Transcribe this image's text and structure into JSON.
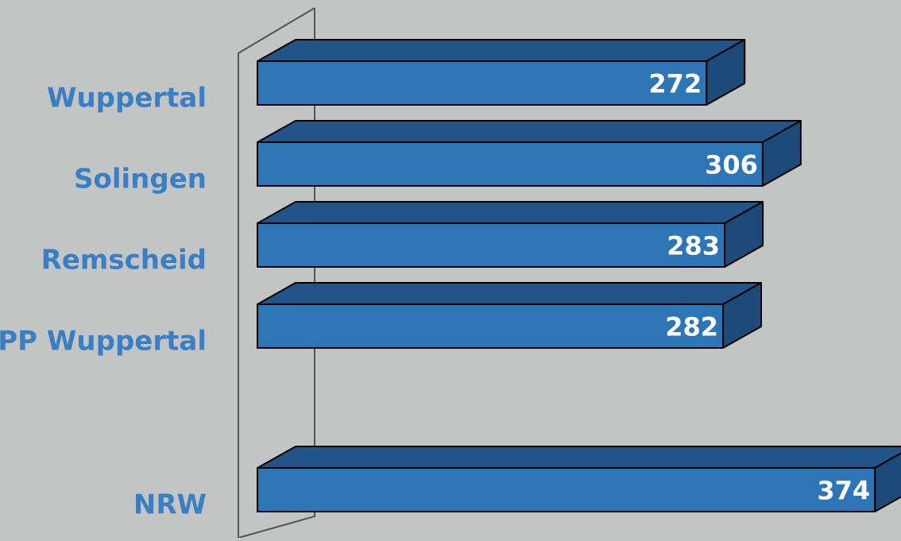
{
  "chart_data": {
    "type": "bar",
    "orientation": "horizontal",
    "style": "3d",
    "categories": [
      "Wuppertal",
      "Solingen",
      "Remscheid",
      "PP Wuppertal",
      "NRW"
    ],
    "values": [
      272,
      306,
      283,
      282,
      374
    ],
    "series": [
      {
        "values": [
          272,
          306,
          283,
          282,
          374
        ]
      }
    ],
    "title": "",
    "xlabel": "",
    "ylabel": "",
    "data_labels": [
      "272",
      "306",
      "283",
      "282",
      "374"
    ],
    "grid": false,
    "legend": "none",
    "colors": {
      "background": "#c3c5c4",
      "bar_front": "#2e75b6",
      "bar_top": "#22548a",
      "bar_side": "#1e4a7a",
      "outline": "#000000",
      "category_text": "#3a7fc4",
      "value_text": "#ffffff",
      "axis_wall": "#555555"
    }
  }
}
